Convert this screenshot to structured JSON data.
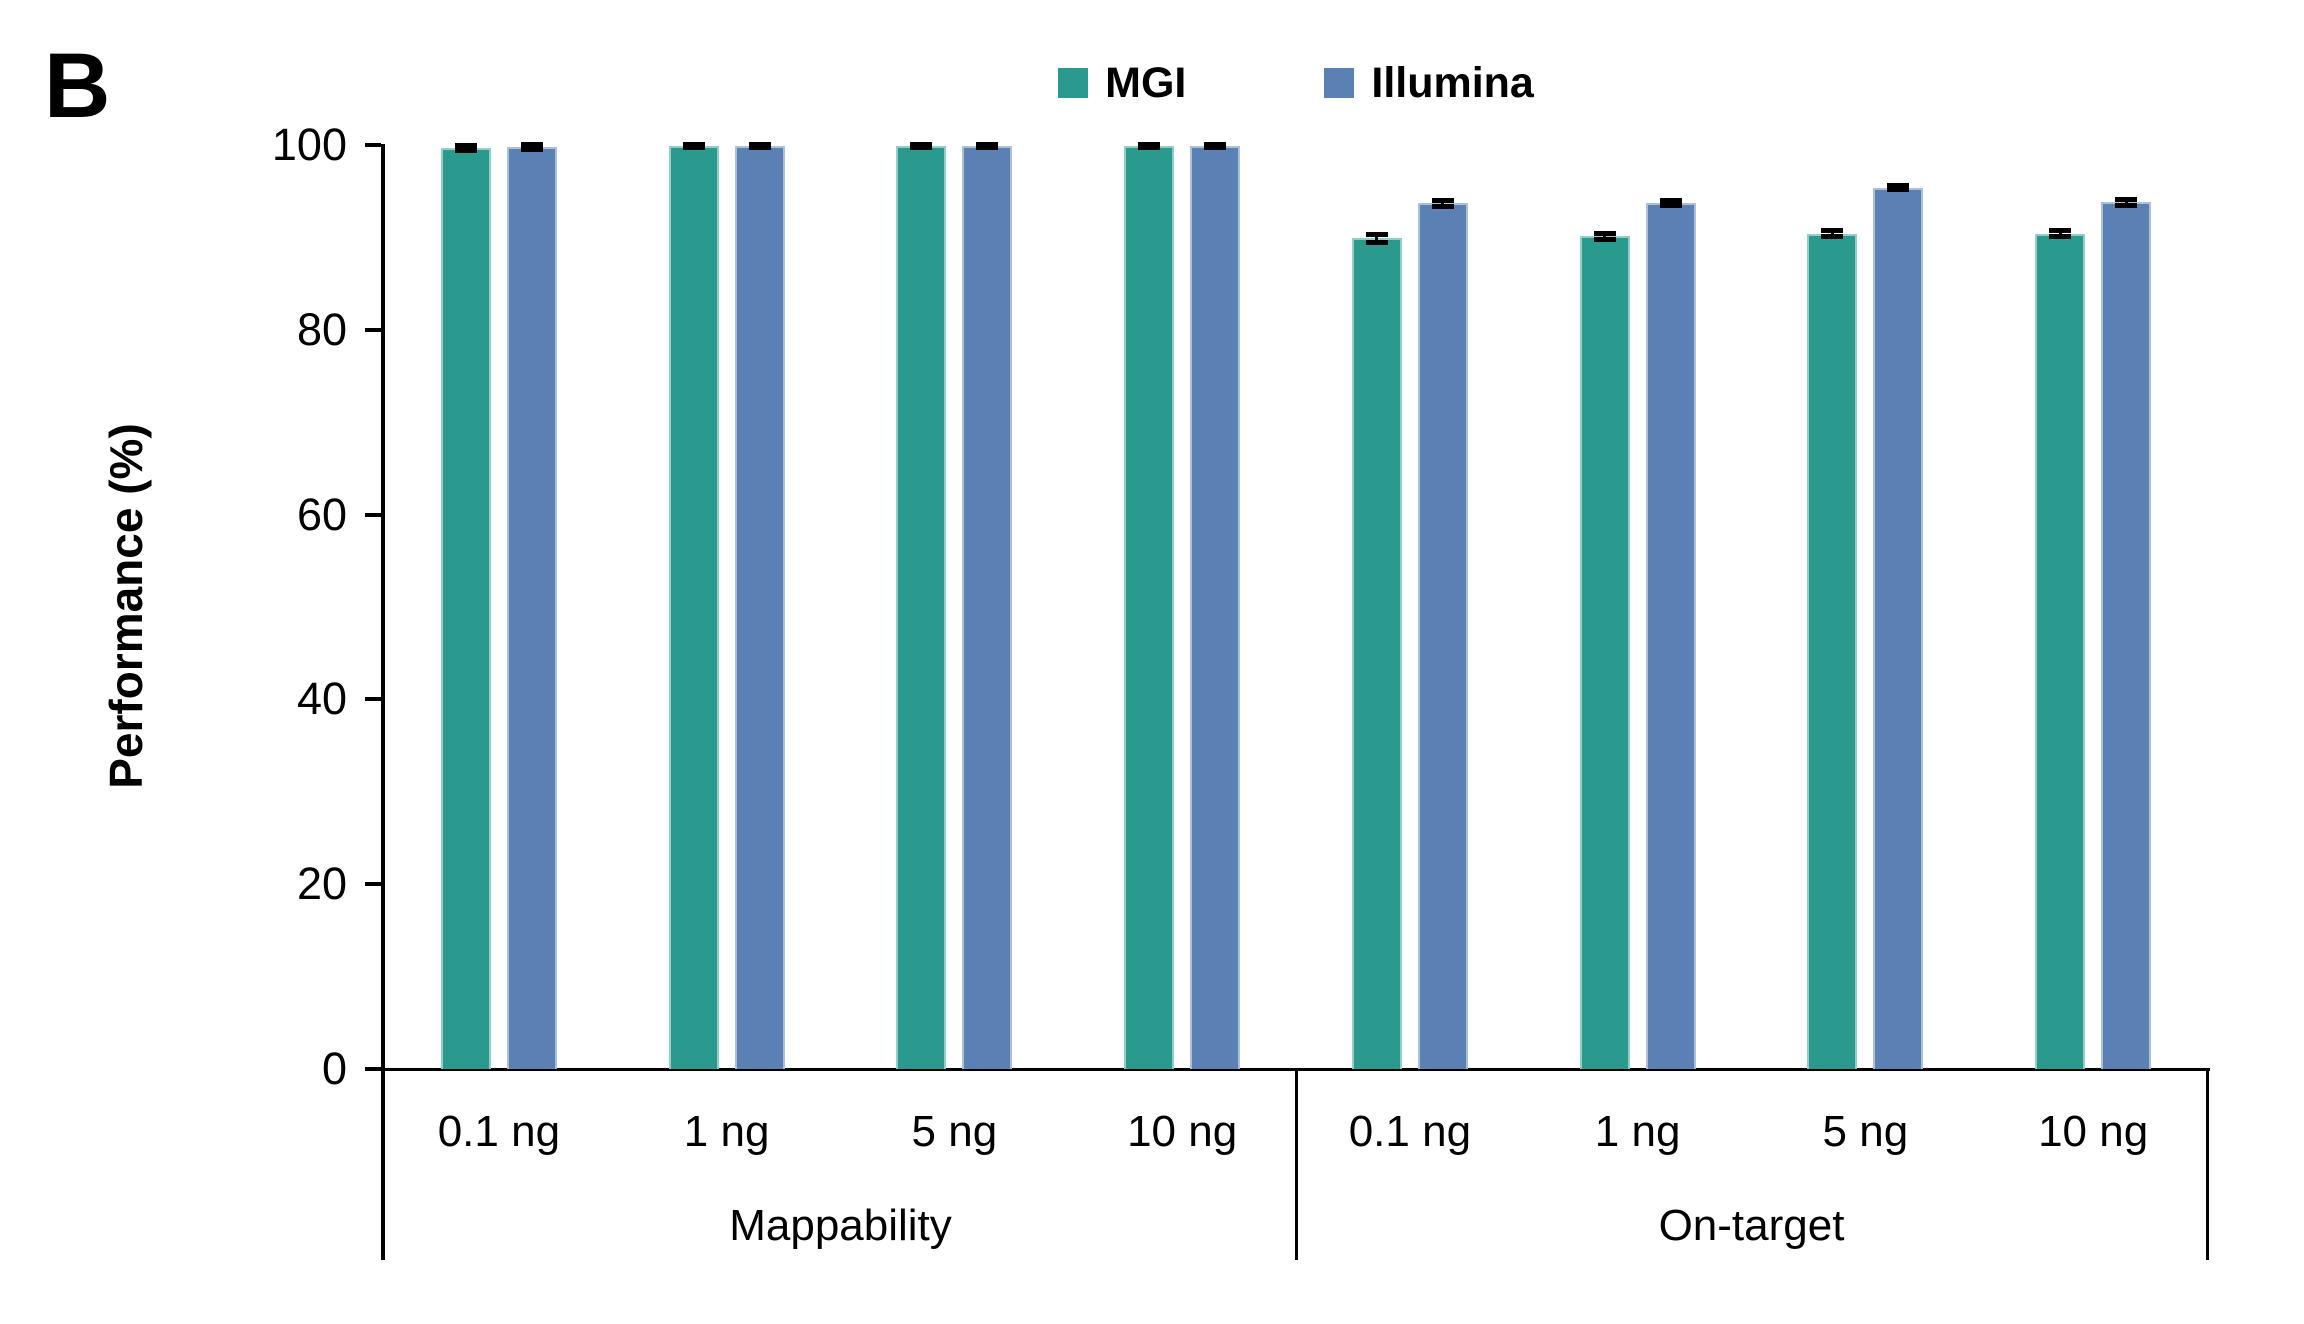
{
  "panel_label": "B",
  "chart_data": {
    "type": "bar",
    "title": "",
    "ylabel": "Performance (%)",
    "xlabel": "",
    "ylim": [
      0,
      100
    ],
    "yticks": [
      0,
      20,
      40,
      60,
      80,
      100
    ],
    "grid": false,
    "legend_position": "top-center",
    "group_labels": [
      "Mappability",
      "On-target"
    ],
    "categories_per_group": [
      [
        "0.1 ng",
        "1 ng",
        "5 ng",
        "10 ng"
      ],
      [
        "0.1 ng",
        "1 ng",
        "5 ng",
        "10 ng"
      ]
    ],
    "series": [
      {
        "name": "MGI",
        "color": "#2a9a8e",
        "values": [
          [
            99.7,
            99.9,
            99.9,
            99.9
          ],
          [
            89.9,
            90.1,
            90.4,
            90.4
          ]
        ],
        "errors": [
          [
            0.2,
            0.15,
            0.15,
            0.15
          ],
          [
            0.4,
            0.25,
            0.25,
            0.25
          ]
        ]
      },
      {
        "name": "Illumina",
        "color": "#5b80b4",
        "values": [
          [
            99.8,
            99.9,
            99.9,
            99.9
          ],
          [
            93.7,
            93.7,
            95.4,
            93.8
          ]
        ],
        "errors": [
          [
            0.2,
            0.15,
            0.15,
            0.15
          ],
          [
            0.25,
            0.2,
            0.2,
            0.25
          ]
        ]
      }
    ],
    "error_bar_color": "#000000"
  }
}
